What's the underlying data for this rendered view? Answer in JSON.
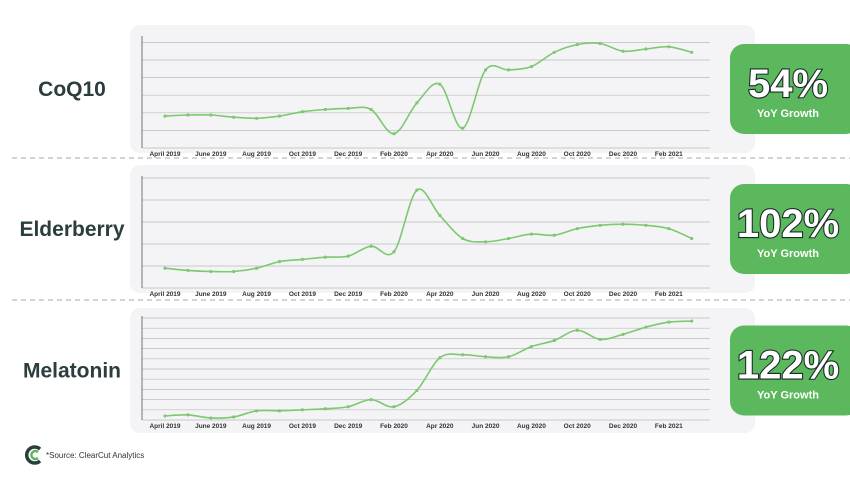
{
  "chart_data": [
    {
      "type": "line",
      "title": "CoQ10",
      "growth": "54%",
      "growth_label": "YoY Growth",
      "categories": [
        "April 2019",
        null,
        "June 2019",
        null,
        "Aug 2019",
        null,
        "Oct 2019",
        null,
        "Dec 2019",
        null,
        "Feb 2020",
        null,
        "Apr 2020",
        null,
        "Jun 2020",
        null,
        "Aug 2020",
        null,
        "Oct 2020",
        null,
        "Dec 2020",
        null,
        "Feb 2021",
        null
      ],
      "series": [
        {
          "color": "#7dc870",
          "values": [
            29,
            30,
            30,
            28,
            27,
            29,
            33,
            35,
            36,
            35,
            13,
            41,
            58,
            18,
            71,
            71,
            74,
            87,
            94,
            95,
            88,
            90,
            92,
            87
          ]
        }
      ],
      "ylim": [
        0,
        100
      ],
      "yticks": [
        0,
        16,
        32,
        48,
        64,
        80,
        96
      ],
      "grid": true
    },
    {
      "type": "line",
      "title": "Elderberry",
      "growth": "102%",
      "growth_label": "YoY Growth",
      "categories": [
        "April 2019",
        null,
        "June 2019",
        null,
        "Aug 2019",
        null,
        "Oct 2019",
        null,
        "Dec 2019",
        null,
        "Feb 2020",
        null,
        "Apr 2020",
        null,
        "Jun 2020",
        null,
        "Aug 2020",
        null,
        "Oct 2020",
        null,
        "Dec 2020",
        null,
        "Feb 2021",
        null
      ],
      "series": [
        {
          "color": "#7dc870",
          "values": [
            18,
            16,
            15,
            15,
            18,
            24,
            26,
            28,
            29,
            38,
            33,
            89,
            66,
            45,
            42,
            45,
            49,
            48,
            54,
            57,
            58,
            57,
            54,
            45
          ]
        }
      ],
      "ylim": [
        0,
        100
      ],
      "yticks": [
        0,
        20,
        40,
        60,
        80,
        100
      ],
      "grid": true
    },
    {
      "type": "line",
      "title": "Melatonin",
      "growth": "122%",
      "growth_label": "YoY Growth",
      "categories": [
        "April 2019",
        null,
        "June 2019",
        null,
        "Aug 2019",
        null,
        "Oct 2019",
        null,
        "Dec 2019",
        null,
        "Feb 2020",
        null,
        "Apr 2020",
        null,
        "Jun 2020",
        null,
        "Aug 2020",
        null,
        "Oct 2020",
        null,
        "Dec 2020",
        null,
        "Feb 2021",
        null
      ],
      "series": [
        {
          "color": "#7dc870",
          "values": [
            4,
            5,
            2,
            3,
            9,
            9,
            10,
            11,
            13,
            20,
            13,
            29,
            61,
            64,
            62,
            62,
            72,
            78,
            88,
            79,
            84,
            91,
            96,
            97
          ]
        }
      ],
      "ylim": [
        0,
        100
      ],
      "yticks": [
        0,
        10,
        20,
        30,
        40,
        50,
        60,
        70,
        80,
        90,
        100
      ],
      "grid": true
    }
  ],
  "source": "*Source: ClearCut Analytics"
}
